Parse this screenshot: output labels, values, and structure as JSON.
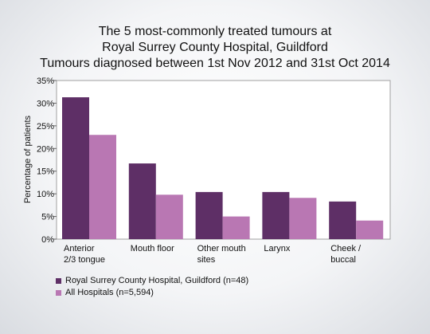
{
  "chart_data": {
    "type": "bar",
    "title_lines": [
      "The 5 most-commonly treated tumours at",
      "Royal Surrey County Hospital, Guildford",
      "Tumours diagnosed between 1st Nov 2012 and 31st Oct 2014"
    ],
    "ylabel": "Percentage of patients",
    "ylim": [
      0,
      35
    ],
    "yticks": [
      "0%",
      "5%",
      "10%",
      "15%",
      "20%",
      "25%",
      "30%",
      "35%"
    ],
    "ytick_values": [
      0,
      5,
      10,
      15,
      20,
      25,
      30,
      35
    ],
    "categories": [
      [
        "Anterior",
        "2/3 tongue"
      ],
      [
        "Mouth floor"
      ],
      [
        "Other mouth",
        "sites"
      ],
      [
        "Larynx"
      ],
      [
        "Cheek /",
        "buccal"
      ]
    ],
    "series": [
      {
        "name": "Royal Surrey County Hospital, Guildford (n=48)",
        "color": "#5e2f66",
        "values": [
          31.3,
          16.7,
          10.4,
          10.4,
          8.3
        ]
      },
      {
        "name": "All Hospitals (n=5,594)",
        "color": "#b977b3",
        "values": [
          23.0,
          9.8,
          5.0,
          9.1,
          4.1
        ]
      }
    ],
    "grid": false,
    "legend_position": "bottom-left"
  }
}
